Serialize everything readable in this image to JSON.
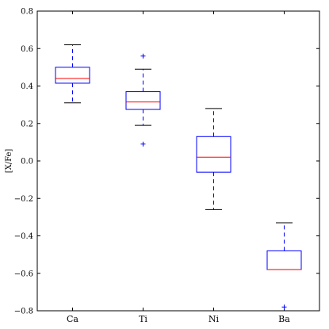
{
  "chart_data": {
    "type": "box",
    "title": "",
    "xlabel": "",
    "ylabel": "[X/Fe]",
    "ylim": [
      -0.8,
      0.8
    ],
    "yticks": [
      "−0.8",
      "−0.6",
      "−0.4",
      "−0.2",
      "0.0",
      "0.2",
      "0.4",
      "0.6",
      "0.8"
    ],
    "ytick_values": [
      -0.8,
      -0.6,
      -0.4,
      -0.2,
      0.0,
      0.2,
      0.4,
      0.6,
      0.8
    ],
    "categories": [
      "Ca",
      "Ti",
      "Ni",
      "Ba"
    ],
    "boxes": [
      {
        "label": "Ca",
        "whisker_low": 0.31,
        "q1": 0.415,
        "median": 0.44,
        "q3": 0.5,
        "whisker_high": 0.62,
        "fliers": []
      },
      {
        "label": "Ti",
        "whisker_low": 0.19,
        "q1": 0.275,
        "median": 0.315,
        "q3": 0.37,
        "whisker_high": 0.49,
        "fliers": [
          0.56,
          0.09
        ]
      },
      {
        "label": "Ni",
        "whisker_low": -0.26,
        "q1": -0.06,
        "median": 0.02,
        "q3": 0.13,
        "whisker_high": 0.28,
        "fliers": []
      },
      {
        "label": "Ba",
        "whisker_low": -0.58,
        "q1": -0.58,
        "median": -0.58,
        "q3": -0.48,
        "whisker_high": -0.33,
        "fliers": [
          -0.78
        ]
      }
    ],
    "grid": false,
    "colors": {
      "box": "#0000ff",
      "median": "#ff0000",
      "whisker": "#0000ff",
      "cap": "#000000",
      "flier": "#0000ff",
      "axes": "#000000"
    }
  }
}
